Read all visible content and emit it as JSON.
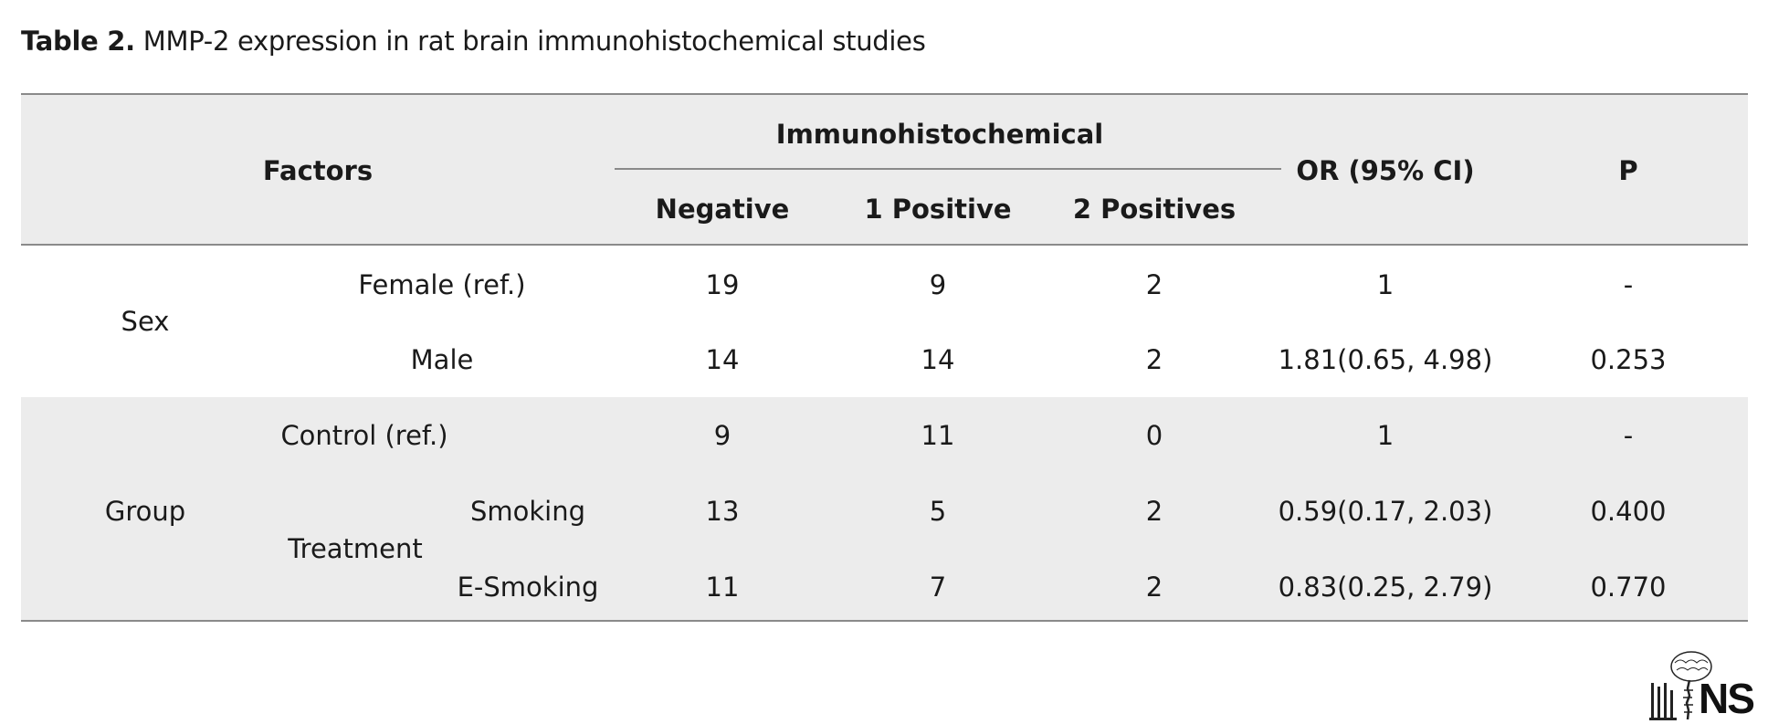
{
  "caption": {
    "label": "Table 2.",
    "text": "MMP-2 expression in rat brain immunohistochemical studies"
  },
  "table": {
    "header": {
      "factors": "Factors",
      "group_header": "Immunohistochemical",
      "negative": "Negative",
      "one_positive": "1 Positive",
      "two_positives": "2 Positives",
      "or_ci": "OR (95% CI)",
      "p": "P"
    },
    "sex": {
      "label": "Sex",
      "rows": [
        {
          "label": "Female (ref.)",
          "negative": "19",
          "one_positive": "9",
          "two_positives": "2",
          "or_ci": "1",
          "p": "-"
        },
        {
          "label": "Male",
          "negative": "14",
          "one_positive": "14",
          "two_positives": "2",
          "or_ci": "1.81(0.65, 4.98)",
          "p": "0.253"
        }
      ]
    },
    "group": {
      "label": "Group",
      "control": {
        "label": "Control (ref.)",
        "negative": "9",
        "one_positive": "11",
        "two_positives": "0",
        "or_ci": "1",
        "p": "-"
      },
      "treatment": {
        "label": "Treatment",
        "rows": [
          {
            "label": "Smoking",
            "negative": "13",
            "one_positive": "5",
            "two_positives": "2",
            "or_ci": "0.59(0.17, 2.03)",
            "p": "0.400"
          },
          {
            "label": "E-Smoking",
            "negative": "11",
            "one_positive": "7",
            "two_positives": "2",
            "or_ci": "0.83(0.25, 2.79)",
            "p": "0.770"
          }
        ]
      }
    }
  },
  "logo": {
    "text": "NS",
    "icon": "brain-spine-logo-icon"
  },
  "colors": {
    "band": "#ececec",
    "rule": "#8a8a8a",
    "text": "#1a1a1a"
  }
}
